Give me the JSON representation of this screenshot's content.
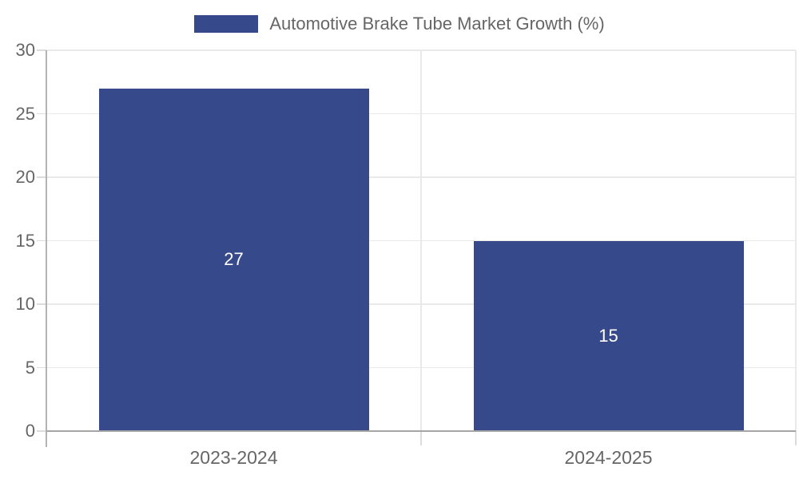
{
  "chart_data": {
    "type": "bar",
    "title": "Automotive Brake Tube Market Growth (%)",
    "legend": {
      "position": "top",
      "label": "Automotive Brake Tube Market Growth (%)"
    },
    "categories": [
      "2023-2024",
      "2024-2025"
    ],
    "series": [
      {
        "name": "Automotive Brake Tube Market Growth (%)",
        "values": [
          27,
          15
        ]
      }
    ],
    "value_labels": [
      "27",
      "15"
    ],
    "xlabel": "",
    "ylabel": "",
    "ylim": [
      0,
      30
    ],
    "yticks": [
      0,
      5,
      10,
      15,
      20,
      25,
      30
    ],
    "grid": true,
    "colors": {
      "bar": "#36498b",
      "value_label": "#ffffff",
      "tick_text": "#666666",
      "gridline": "#e9e9e9",
      "tick_mark": "#dcdcdc",
      "x_axis_line": "#a6a6a6",
      "y_axis_line": "#b3b3b3",
      "background": "#ffffff"
    }
  }
}
